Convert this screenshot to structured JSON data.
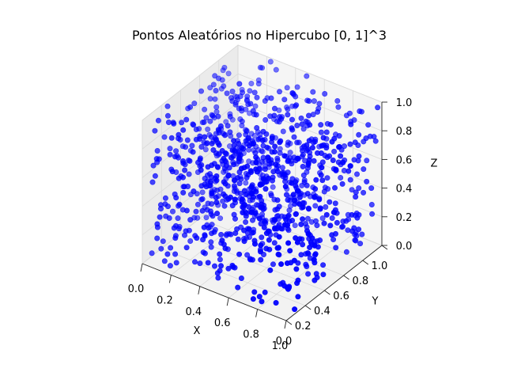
{
  "chart_data": {
    "type": "scatter",
    "projection": "3d",
    "title": "Pontos Aleatórios no Hipercubo [0, 1]^3",
    "xlabel": "X",
    "ylabel": "Y",
    "zlabel": "Z",
    "xlim": [
      0,
      1
    ],
    "ylim": [
      0,
      1
    ],
    "zlim": [
      0,
      1
    ],
    "xticks": [
      "0.0",
      "0.2",
      "0.4",
      "0.6",
      "0.8",
      "1.0"
    ],
    "yticks": [
      "0.0",
      "0.2",
      "0.4",
      "0.6",
      "0.8",
      "1.0"
    ],
    "zticks": [
      "0.0",
      "0.2",
      "0.4",
      "0.6",
      "0.8",
      "1.0"
    ],
    "grid": true,
    "legend": "none",
    "marker_color": "#0000ff",
    "series": [
      {
        "distribution": "uniform random points in [0,1]^3",
        "n_points": 1000,
        "seed": 42,
        "points": []
      }
    ]
  },
  "colors": {
    "point": "#0000ff",
    "pane": "#f2f2f2",
    "grid": "#d9d9d9"
  }
}
